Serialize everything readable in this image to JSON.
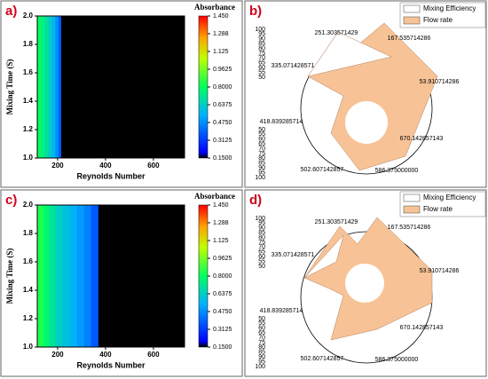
{
  "chart_data": [
    {
      "type": "heatmap",
      "panel_label": "a)",
      "xlabel": "Reynolds Number",
      "ylabel": "Mixing Time (S)",
      "xlim": [
        115,
        730
      ],
      "xticks": [
        200,
        400,
        600
      ],
      "ylim": [
        1.0,
        2.0
      ],
      "yticks": [
        {
          "value": 1.0,
          "label": "1.0"
        },
        1.2,
        1.4,
        1.6,
        1.8,
        {
          "value": 2.0,
          "label": "2.0"
        }
      ],
      "x_edges": [
        115,
        130,
        145,
        160,
        175,
        190,
        205,
        215,
        730
      ],
      "values": [
        0.78,
        0.72,
        0.66,
        0.6,
        0.52,
        0.42,
        0.32,
        0
      ],
      "colormap": "jet",
      "under_color": "#000000",
      "colorbar_title": "Absorbance",
      "clim": [
        0.15,
        1.45
      ],
      "colorbar_ticks": [
        {
          "value": 0.15,
          "label": "0.1500"
        },
        0.3125,
        {
          "value": 0.475,
          "label": "0.4750"
        },
        0.6375,
        {
          "value": 0.8,
          "label": "0.8000"
        },
        0.9625,
        1.125,
        1.288,
        {
          "value": 1.45,
          "label": "1.450"
        }
      ]
    },
    {
      "type": "radar",
      "panel_label": "b)",
      "series": [
        {
          "name": "Mixing Efficiency",
          "color": "#ffffff"
        },
        {
          "name": "Flow rate",
          "color": "#f7c396"
        }
      ],
      "angle_labels": [
        "251.303571429",
        "167.535714286",
        "335.071428571",
        "53.910714286",
        "418.839285714",
        "670.142857143",
        "502.607142857",
        "586.375000000"
      ],
      "rticks_upper": [
        100,
        95,
        90,
        85,
        80,
        75,
        70,
        65,
        60,
        55,
        50
      ],
      "rticks_lower": [
        50,
        55,
        60,
        65,
        70,
        75,
        80,
        85,
        90,
        95,
        100
      ]
    },
    {
      "type": "heatmap",
      "panel_label": "c)",
      "xlabel": "Reynolds Number",
      "ylabel": "Mixing Time (S)",
      "xlim": [
        115,
        730
      ],
      "xticks": [
        200,
        400,
        600
      ],
      "ylim": [
        1.0,
        2.0
      ],
      "yticks": [
        {
          "value": 1.0,
          "label": "1.0"
        },
        1.2,
        1.4,
        1.6,
        1.8,
        {
          "value": 2.0,
          "label": "2.0"
        }
      ],
      "x_edges": [
        115,
        140,
        165,
        190,
        220,
        250,
        280,
        310,
        340,
        370,
        730
      ],
      "values": [
        0.82,
        0.75,
        0.68,
        0.6,
        0.55,
        0.5,
        0.45,
        0.4,
        0.32,
        0
      ],
      "colormap": "jet",
      "under_color": "#000000",
      "colorbar_title": "Absorbance",
      "clim": [
        0.15,
        1.45
      ],
      "colorbar_ticks": [
        {
          "value": 0.15,
          "label": "0.1500"
        },
        0.3125,
        {
          "value": 0.475,
          "label": "0.4750"
        },
        0.6375,
        {
          "value": 0.8,
          "label": "0.8000"
        },
        0.9625,
        1.125,
        1.288,
        {
          "value": 1.45,
          "label": "1.450"
        }
      ]
    },
    {
      "type": "radar",
      "panel_label": "d)",
      "series": [
        {
          "name": "Mixing Efficiency",
          "color": "#ffffff"
        },
        {
          "name": "Flow rate",
          "color": "#f7c396"
        }
      ],
      "angle_labels": [
        "251.303571429",
        "167.535714286",
        "335.071428571",
        "53.910714286",
        "418.839285714",
        "670.142857143",
        "502.607142857",
        "586.375000000"
      ],
      "rticks_upper": [
        100,
        95,
        90,
        85,
        80,
        75,
        70,
        65,
        60,
        55,
        50
      ],
      "rticks_lower": [
        50,
        55,
        60,
        65,
        70,
        75,
        80,
        85,
        90,
        95,
        100
      ]
    }
  ]
}
